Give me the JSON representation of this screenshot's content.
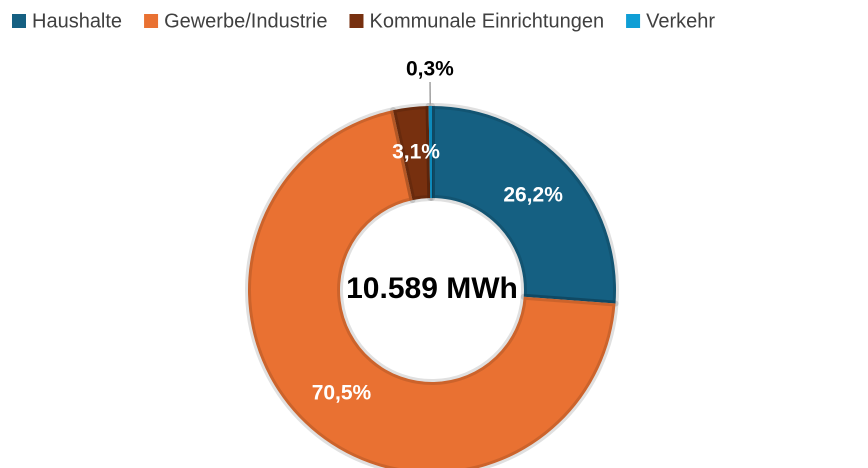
{
  "chart_data": {
    "type": "donut",
    "center_label": "10.589 MWh",
    "categories": [
      "Haushalte",
      "Gewerbe/Industrie",
      "Kommunale Einrichtungen",
      "Verkehr"
    ],
    "values": [
      26.2,
      70.5,
      3.1,
      0.3
    ],
    "value_labels": [
      "26,2%",
      "70,5%",
      "3,1%",
      "0,3%"
    ],
    "colors": [
      "#156082",
      "#e97132",
      "#77300f",
      "#0f9ed5"
    ],
    "legend": "top"
  }
}
